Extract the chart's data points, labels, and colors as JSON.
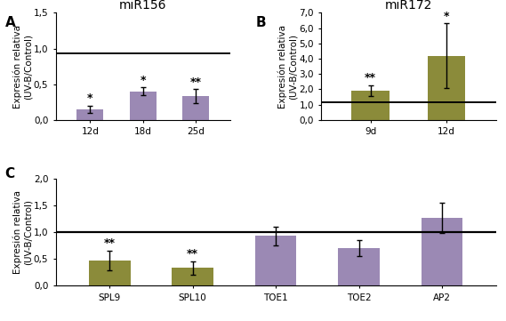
{
  "panel_A": {
    "title": "miR156",
    "categories": [
      "12d",
      "18d",
      "25d"
    ],
    "values": [
      0.15,
      0.4,
      0.33
    ],
    "errors": [
      0.05,
      0.055,
      0.1
    ],
    "bar_color": "#9b89b4",
    "hline": 0.93,
    "ylim": [
      0,
      1.5
    ],
    "yticks": [
      0.0,
      0.5,
      1.0,
      1.5
    ],
    "ytick_labels": [
      "0,0",
      "0,5",
      "1,0",
      "1,5"
    ],
    "significance": [
      "*",
      "*",
      "**"
    ],
    "ylabel": "Expresión relativa\n(UV-B/Control)"
  },
  "panel_B": {
    "title": "miR172",
    "categories": [
      "9d",
      "12d"
    ],
    "values": [
      1.9,
      4.2
    ],
    "errors": [
      0.35,
      2.1
    ],
    "bar_color": "#8b8b3a",
    "hline": 1.15,
    "ylim": [
      0,
      7.0
    ],
    "yticks": [
      0.0,
      1.0,
      2.0,
      3.0,
      4.0,
      5.0,
      6.0,
      7.0
    ],
    "ytick_labels": [
      "0,0",
      "1,0",
      "2,0",
      "3,0",
      "4,0",
      "5,0",
      "6,0",
      "7,0"
    ],
    "significance": [
      "**",
      "*"
    ],
    "ylabel": "Expresión relativa\n(UV-B/Control)"
  },
  "panel_C": {
    "categories": [
      "SPL9",
      "SPL10",
      "TOE1",
      "TOE2",
      "AP2"
    ],
    "values": [
      0.47,
      0.33,
      0.93,
      0.7,
      1.27
    ],
    "errors": [
      0.18,
      0.12,
      0.18,
      0.15,
      0.28
    ],
    "bar_colors": [
      "#8b8b3a",
      "#8b8b3a",
      "#9b89b4",
      "#9b89b4",
      "#9b89b4"
    ],
    "hline": 1.0,
    "ylim": [
      0,
      2.0
    ],
    "yticks": [
      0.0,
      0.5,
      1.0,
      1.5,
      2.0
    ],
    "ytick_labels": [
      "0,0",
      "0,5",
      "1,0",
      "1,5",
      "2,0"
    ],
    "significance": [
      "**",
      "**",
      "",
      "",
      ""
    ],
    "ylabel": "Expresión relativa\n(UV-B/Control)"
  },
  "label_fontsize": 7.5,
  "tick_fontsize": 7.5,
  "title_fontsize": 10,
  "sig_fontsize": 9,
  "panel_label_fontsize": 11,
  "background_color": "#ffffff"
}
